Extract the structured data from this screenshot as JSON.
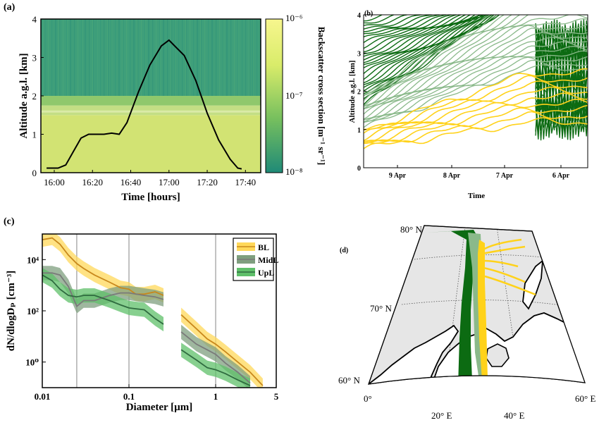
{
  "chart_data": [
    {
      "panel": "(a)",
      "type": "heatmap",
      "xlabel": "Time [hours]",
      "ylabel": "Altitude a.g.l. [km]",
      "x_ticks": [
        "16:00",
        "16:20",
        "16:40",
        "17:00",
        "17:20",
        "17:40"
      ],
      "y_ticks": [
        "0",
        "1",
        "2",
        "3",
        "4"
      ],
      "ylim": [
        0,
        4
      ],
      "colorbar": {
        "label": "Backscatter cross section [m⁻¹ sr⁻¹]",
        "ticks": [
          "10⁻⁶",
          "10⁻⁷",
          "10⁻⁸"
        ],
        "scale": "log",
        "colors": [
          "#1f8a77",
          "#76bf5e",
          "#d9ec6a",
          "#f7f68e"
        ]
      },
      "layers": [
        {
          "from_km": 0.0,
          "to_km": 1.5,
          "color": "#d2e373"
        },
        {
          "from_km": 1.5,
          "to_km": 1.75,
          "color": "#c3de84"
        },
        {
          "from_km": 1.75,
          "to_km": 2.0,
          "color": "#8fc86c"
        },
        {
          "from_km": 2.0,
          "to_km": 4.0,
          "color": "#3f9f7a"
        }
      ],
      "flight_track": {
        "color": "#000000",
        "points": [
          {
            "t": "15:56",
            "alt_km": 0.12
          },
          {
            "t": "16:02",
            "alt_km": 0.12
          },
          {
            "t": "16:06",
            "alt_km": 0.2
          },
          {
            "t": "16:10",
            "alt_km": 0.55
          },
          {
            "t": "16:14",
            "alt_km": 0.9
          },
          {
            "t": "16:18",
            "alt_km": 1.0
          },
          {
            "t": "16:26",
            "alt_km": 1.0
          },
          {
            "t": "16:30",
            "alt_km": 1.03
          },
          {
            "t": "16:34",
            "alt_km": 1.0
          },
          {
            "t": "16:38",
            "alt_km": 1.3
          },
          {
            "t": "16:44",
            "alt_km": 2.1
          },
          {
            "t": "16:50",
            "alt_km": 2.8
          },
          {
            "t": "16:56",
            "alt_km": 3.3
          },
          {
            "t": "17:00",
            "alt_km": 3.45
          },
          {
            "t": "17:04",
            "alt_km": 3.25
          },
          {
            "t": "17:08",
            "alt_km": 3.05
          },
          {
            "t": "17:14",
            "alt_km": 2.4
          },
          {
            "t": "17:20",
            "alt_km": 1.55
          },
          {
            "t": "17:26",
            "alt_km": 0.85
          },
          {
            "t": "17:32",
            "alt_km": 0.35
          },
          {
            "t": "17:36",
            "alt_km": 0.12
          },
          {
            "t": "17:38",
            "alt_km": 0.1
          }
        ]
      }
    },
    {
      "panel": "(b)",
      "type": "line",
      "xlabel": "Time",
      "ylabel": "Altitude a.g.l. [km]",
      "x_ticks": [
        "9 Apr",
        "8 Apr",
        "7 Apr",
        "6 Apr"
      ],
      "y_ticks": [
        "0",
        "1",
        "2",
        "3",
        "4"
      ],
      "ylim": [
        0,
        4
      ],
      "series_colors": {
        "BL": "#ffd21a",
        "MidL": "#8ab98a",
        "UpL": "#0c6b12"
      }
    },
    {
      "panel": "(c)",
      "type": "line",
      "xlabel": "Diameter [µm]",
      "ylabel": "dN/dlogDₚ [cm⁻³]",
      "x_scale": "log",
      "y_scale": "log",
      "xlim": [
        0.01,
        5
      ],
      "ylim": [
        0.1,
        100000
      ],
      "x_ticks": [
        "0.01",
        "0.1",
        "1",
        "5"
      ],
      "y_ticks": [
        "10⁰",
        "10²",
        "10⁴"
      ],
      "legend": {
        "placement": "top-right",
        "entries": [
          "BL",
          "MidL",
          "UpL"
        ]
      },
      "series": [
        {
          "name": "BL",
          "color": "#c8881c",
          "band": "#ffd85a",
          "points": [
            [
              0.01,
              60000
            ],
            [
              0.013,
              70000
            ],
            [
              0.016,
              40000
            ],
            [
              0.02,
              15000
            ],
            [
              0.025,
              7000
            ],
            [
              0.03,
              4500
            ],
            [
              0.04,
              2500
            ],
            [
              0.06,
              1300
            ],
            [
              0.08,
              800
            ],
            [
              0.1,
              700
            ],
            [
              0.12,
              450
            ],
            [
              0.15,
              450
            ],
            [
              0.2,
              550
            ],
            [
              0.25,
              400
            ],
            [
              0.4,
              70
            ],
            [
              0.6,
              20
            ],
            [
              0.8,
              8
            ],
            [
              1.0,
              5
            ],
            [
              1.3,
              2.5
            ],
            [
              1.8,
              1.0
            ],
            [
              2.5,
              0.4
            ],
            [
              3.5,
              0.12
            ]
          ]
        },
        {
          "name": "MidL",
          "color": "#7a7a7a",
          "band": "#7f9f7f",
          "points": [
            [
              0.01,
              3000
            ],
            [
              0.013,
              3000
            ],
            [
              0.016,
              2500
            ],
            [
              0.02,
              900
            ],
            [
              0.025,
              150
            ],
            [
              0.03,
              250
            ],
            [
              0.04,
              250
            ],
            [
              0.06,
              400
            ],
            [
              0.08,
              500
            ],
            [
              0.1,
              500
            ],
            [
              0.15,
              400
            ],
            [
              0.2,
              350
            ],
            [
              0.25,
              280
            ],
            [
              0.4,
              15
            ],
            [
              0.6,
              5
            ],
            [
              0.8,
              3
            ],
            [
              1.0,
              2.0
            ],
            [
              1.3,
              0.9
            ],
            [
              1.8,
              0.4
            ],
            [
              2.5,
              0.15
            ]
          ]
        },
        {
          "name": "UpL",
          "color": "#2f6b3f",
          "band": "#5fc06a",
          "points": [
            [
              0.01,
              2500
            ],
            [
              0.013,
              1500
            ],
            [
              0.016,
              700
            ],
            [
              0.02,
              400
            ],
            [
              0.025,
              350
            ],
            [
              0.03,
              400
            ],
            [
              0.04,
              400
            ],
            [
              0.06,
              250
            ],
            [
              0.08,
              170
            ],
            [
              0.1,
              130
            ],
            [
              0.12,
              120
            ],
            [
              0.15,
              110
            ],
            [
              0.2,
              50
            ],
            [
              0.25,
              30
            ],
            [
              0.4,
              3
            ],
            [
              0.6,
              1.2
            ],
            [
              0.8,
              0.6
            ],
            [
              1.0,
              0.5
            ],
            [
              1.3,
              0.35
            ],
            [
              1.8,
              0.2
            ],
            [
              2.5,
              0.12
            ]
          ]
        }
      ]
    },
    {
      "panel": "(d)",
      "type": "other",
      "lat_labels": [
        "80° N",
        "70° N",
        "60° N"
      ],
      "lon_labels": [
        "0°",
        "20° E",
        "40° E",
        "60° E"
      ]
    }
  ]
}
